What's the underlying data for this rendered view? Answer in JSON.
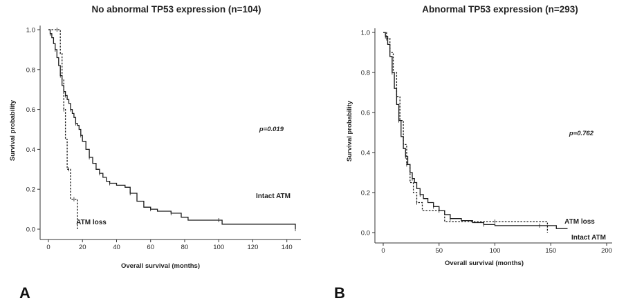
{
  "chart_data": [
    {
      "type": "line",
      "panel_label": "A",
      "title": "No abnormal TP53 expression (n=104)",
      "xlabel": "Overall survival (months)",
      "ylabel": "Survival probability",
      "xlim": [
        0,
        145
      ],
      "ylim": [
        0,
        1.0
      ],
      "xticks": [
        "0",
        "20",
        "40",
        "60",
        "80",
        "100",
        "120",
        "140"
      ],
      "yticks": [
        "0.0",
        "0.2",
        "0.4",
        "0.6",
        "0.8",
        "1.0"
      ],
      "pvalue_text": "p=0.019",
      "series": [
        {
          "name": "Intact ATM",
          "style": "solid",
          "x": [
            0,
            1,
            2,
            3,
            4,
            5,
            6,
            7,
            8,
            9,
            10,
            11,
            12,
            13,
            14,
            15,
            16,
            17,
            18,
            19,
            20,
            22,
            24,
            26,
            28,
            30,
            32,
            34,
            36,
            40,
            45,
            48,
            52,
            56,
            60,
            64,
            68,
            72,
            78,
            82,
            100,
            102,
            140,
            145
          ],
          "y": [
            1.0,
            0.98,
            0.96,
            0.93,
            0.9,
            0.86,
            0.82,
            0.77,
            0.72,
            0.69,
            0.67,
            0.65,
            0.63,
            0.6,
            0.58,
            0.56,
            0.53,
            0.52,
            0.5,
            0.47,
            0.44,
            0.4,
            0.36,
            0.33,
            0.3,
            0.28,
            0.26,
            0.24,
            0.23,
            0.22,
            0.21,
            0.18,
            0.14,
            0.11,
            0.1,
            0.09,
            0.09,
            0.08,
            0.06,
            0.045,
            0.045,
            0.025,
            0.025,
            0.0
          ]
        },
        {
          "name": "ATM loss",
          "style": "dashed",
          "x": [
            0,
            5,
            7,
            8,
            9,
            10,
            11,
            12,
            13,
            14,
            15,
            17
          ],
          "y": [
            1.0,
            1.0,
            0.88,
            0.75,
            0.6,
            0.45,
            0.3,
            0.3,
            0.15,
            0.15,
            0.15,
            0.0
          ]
        }
      ]
    },
    {
      "type": "line",
      "panel_label": "B",
      "title": "Abnormal TP53 expression (n=293)",
      "xlabel": "Overall survival (months)",
      "ylabel": "Survival probability",
      "xlim": [
        0,
        200
      ],
      "ylim": [
        0,
        1.0
      ],
      "xticks": [
        "0",
        "50",
        "100",
        "150",
        "200"
      ],
      "yticks": [
        "0.0",
        "0.2",
        "0.4",
        "0.6",
        "0.8",
        "1.0"
      ],
      "pvalue_text": "p=0.762",
      "series": [
        {
          "name": "Intact ATM",
          "style": "solid",
          "x": [
            0,
            2,
            4,
            6,
            8,
            10,
            12,
            14,
            16,
            18,
            20,
            22,
            24,
            26,
            28,
            30,
            33,
            36,
            40,
            45,
            50,
            55,
            60,
            70,
            80,
            90,
            100,
            120,
            140,
            155,
            165
          ],
          "y": [
            1.0,
            0.98,
            0.94,
            0.88,
            0.8,
            0.72,
            0.64,
            0.56,
            0.48,
            0.42,
            0.38,
            0.34,
            0.3,
            0.27,
            0.25,
            0.22,
            0.19,
            0.17,
            0.15,
            0.13,
            0.11,
            0.09,
            0.07,
            0.06,
            0.05,
            0.04,
            0.035,
            0.035,
            0.035,
            0.02,
            0.02
          ]
        },
        {
          "name": "ATM loss",
          "style": "dashed",
          "x": [
            0,
            3,
            6,
            9,
            12,
            15,
            18,
            21,
            24,
            27,
            30,
            35,
            40,
            50,
            55,
            60,
            100,
            147
          ],
          "y": [
            1.0,
            0.97,
            0.9,
            0.8,
            0.68,
            0.56,
            0.44,
            0.34,
            0.25,
            0.2,
            0.15,
            0.11,
            0.11,
            0.11,
            0.055,
            0.055,
            0.055,
            0.0
          ]
        }
      ]
    }
  ]
}
